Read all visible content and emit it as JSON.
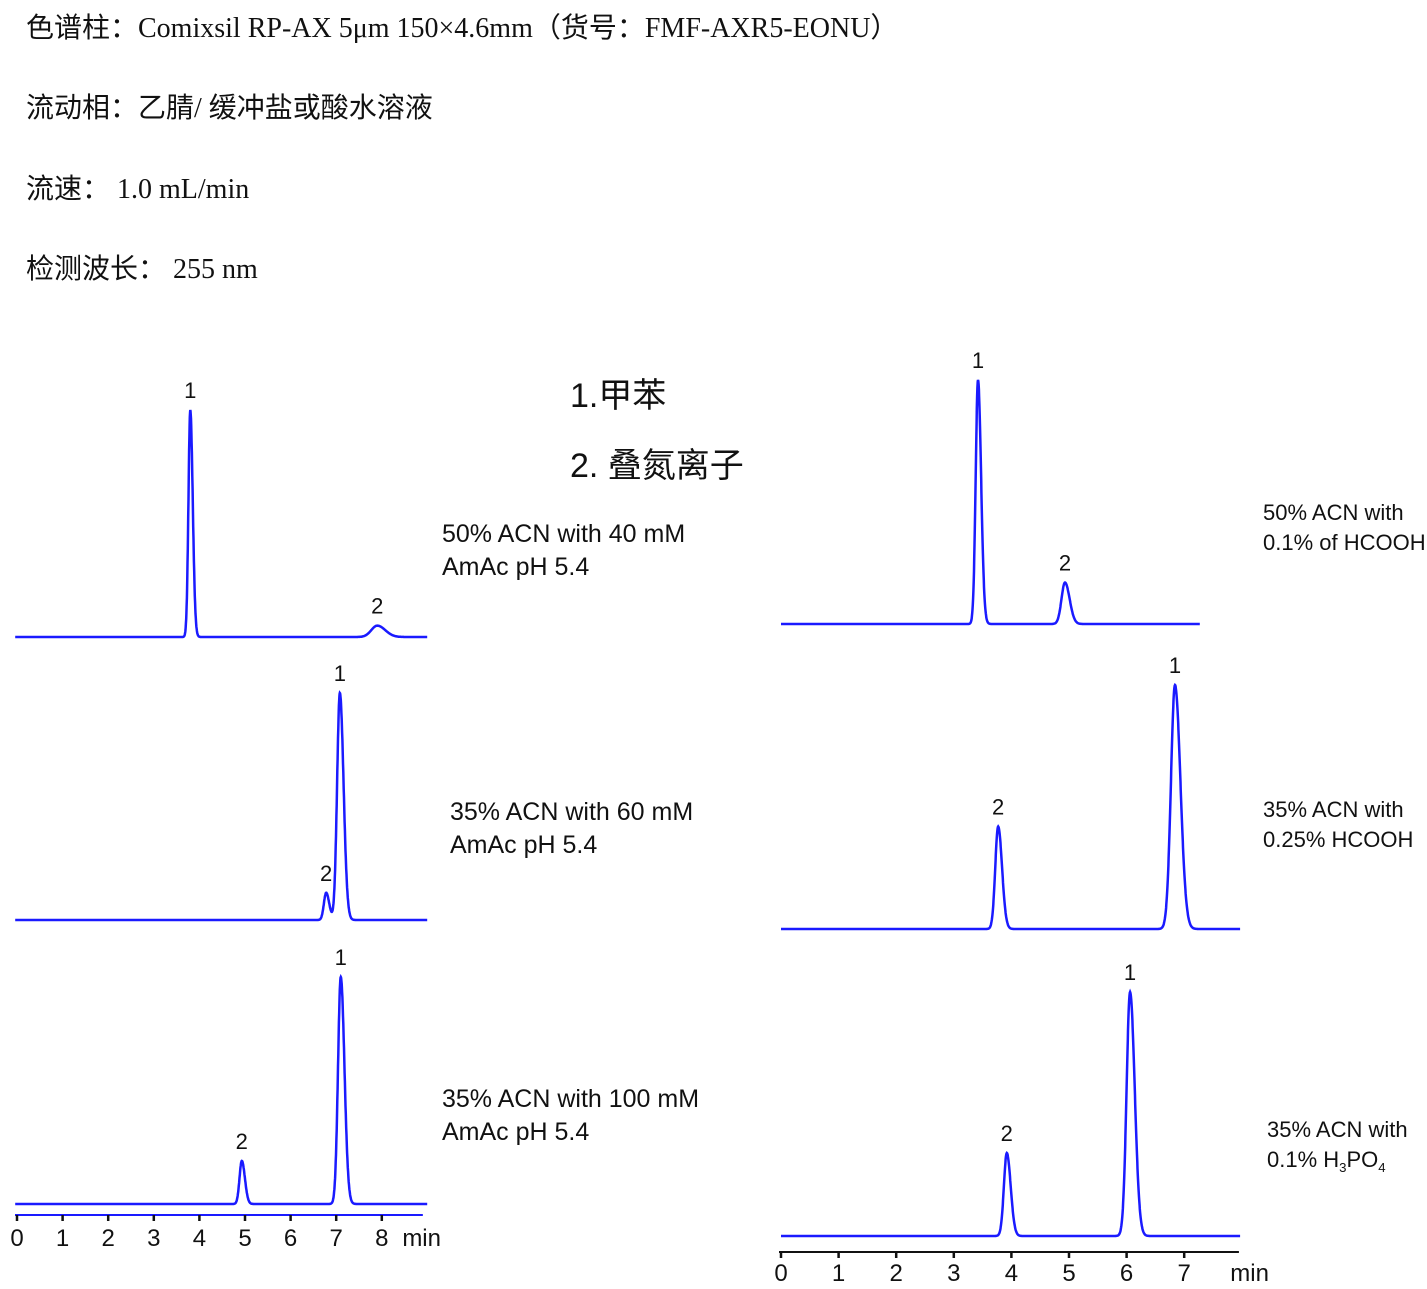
{
  "header": {
    "column": "色谱柱：Comixsil RP-AX 5μm  150×4.6mm（货号：FMF-AXR5-EONU）",
    "mobile_phase": "流动相：乙腈/ 缓冲盐或酸水溶液",
    "flow_rate": "流速：  1.0 mL/min",
    "wavelength": "检测波长：  255 nm"
  },
  "legend": [
    "1.甲苯",
    "2. 叠氮离子"
  ],
  "colors": {
    "trace": "#1a1aff",
    "axis": "#111111"
  },
  "chart_data": [
    {
      "type": "line",
      "panel": "left",
      "xlabel": "min",
      "xticks": [
        "0",
        "1",
        "2",
        "3",
        "4",
        "5",
        "6",
        "7",
        "8"
      ],
      "xlim": [
        0,
        9
      ],
      "y_units": "relative intensity",
      "traces": [
        {
          "label_lines": [
            "50% ACN with 40 mM",
            "AmAc pH 5.4"
          ],
          "peaks": [
            {
              "label": "1",
              "t": 3.8,
              "height": 100,
              "width": 0.04
            },
            {
              "label": "2",
              "t": 7.9,
              "height": 5,
              "width": 0.13
            }
          ]
        },
        {
          "label_lines": [
            "35% ACN with 60 mM",
            "AmAc pH 5.4"
          ],
          "peaks": [
            {
              "label": "2",
              "t": 6.78,
              "height": 12,
              "width": 0.05
            },
            {
              "label": "1",
              "t": 7.08,
              "height": 100,
              "width": 0.06
            }
          ]
        },
        {
          "label_lines": [
            "35% ACN with 100 mM",
            "AmAc pH 5.4"
          ],
          "peaks": [
            {
              "label": "2",
              "t": 4.93,
              "height": 19,
              "width": 0.05
            },
            {
              "label": "1",
              "t": 7.1,
              "height": 100,
              "width": 0.06
            }
          ]
        }
      ]
    },
    {
      "type": "line",
      "panel": "right",
      "xlabel": "min",
      "xticks": [
        "0",
        "1",
        "2",
        "3",
        "4",
        "5",
        "6",
        "7"
      ],
      "xlim": [
        0,
        8
      ],
      "y_units": "relative intensity",
      "traces": [
        {
          "label_lines": [
            "50% ACN with",
            "0.1% of HCOOH"
          ],
          "peaks": [
            {
              "label": "1",
              "t": 3.42,
              "height": 100,
              "width": 0.04
            },
            {
              "label": "2",
              "t": 4.93,
              "height": 17,
              "width": 0.06
            }
          ]
        },
        {
          "label_lines": [
            "35% ACN with",
            "0.25% HCOOH"
          ],
          "peaks": [
            {
              "label": "2",
              "t": 3.77,
              "height": 42,
              "width": 0.05
            },
            {
              "label": "1",
              "t": 6.84,
              "height": 100,
              "width": 0.07
            }
          ]
        },
        {
          "label_lines": [
            "35% ACN with",
            "0.1% H3PO4"
          ],
          "peaks": [
            {
              "label": "2",
              "t": 3.92,
              "height": 34,
              "width": 0.05
            },
            {
              "label": "1",
              "t": 6.06,
              "height": 100,
              "width": 0.06
            }
          ]
        }
      ]
    }
  ]
}
